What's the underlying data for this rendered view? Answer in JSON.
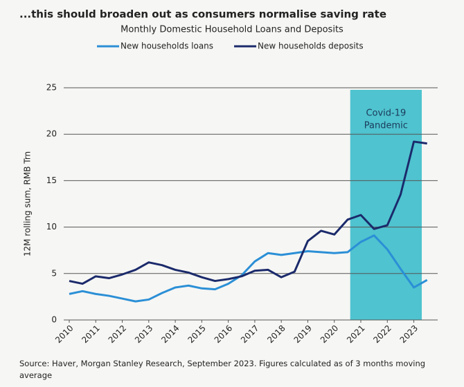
{
  "chart_data": {
    "type": "line",
    "title": "...this should broaden out as consumers normalise saving rate",
    "subtitle": "Monthly Domestic Household Loans and Deposits",
    "y_label": "12M rolling sum, RMB Trn",
    "source": "Source: Haver, Morgan Stanley Research, September 2023. Figures calculated as of 3 months moving average",
    "x": [
      2010,
      2010.5,
      2011,
      2011.5,
      2012,
      2012.5,
      2013,
      2013.5,
      2014,
      2014.5,
      2015,
      2015.5,
      2016,
      2016.5,
      2017,
      2017.5,
      2018,
      2018.5,
      2019,
      2019.5,
      2020,
      2020.5,
      2021,
      2021.5,
      2022,
      2022.5,
      2023,
      2023.5
    ],
    "series": [
      {
        "name": "New households loans",
        "color": "#2b8fd6",
        "values": [
          2.8,
          3.1,
          2.8,
          2.6,
          2.3,
          2.0,
          2.2,
          2.9,
          3.5,
          3.7,
          3.4,
          3.3,
          3.9,
          4.8,
          6.3,
          7.2,
          7.0,
          7.2,
          7.4,
          7.3,
          7.2,
          7.3,
          8.4,
          9.1,
          7.6,
          5.5,
          3.5,
          4.3
        ]
      },
      {
        "name": "New households deposits",
        "color": "#1b2a6b",
        "values": [
          4.2,
          3.9,
          4.7,
          4.5,
          4.9,
          5.4,
          6.2,
          5.9,
          5.4,
          5.1,
          4.6,
          4.2,
          4.4,
          4.7,
          5.3,
          5.4,
          4.6,
          5.2,
          8.5,
          9.6,
          9.2,
          10.8,
          11.3,
          9.8,
          10.2,
          13.5,
          19.2,
          19.0
        ]
      }
    ],
    "xlim": [
      2010,
      2023.9
    ],
    "xticks": [
      2010,
      2011,
      2012,
      2013,
      2014,
      2015,
      2016,
      2017,
      2018,
      2019,
      2020,
      2021,
      2022,
      2023
    ],
    "ylim": [
      0,
      25
    ],
    "yticks": [
      0,
      5,
      10,
      15,
      20,
      25
    ],
    "grid": true,
    "highlight": {
      "label": [
        "Covid-19",
        "Pandemic"
      ],
      "xrange": [
        2020.6,
        2023.3
      ],
      "color": "#4fc3cf"
    }
  }
}
